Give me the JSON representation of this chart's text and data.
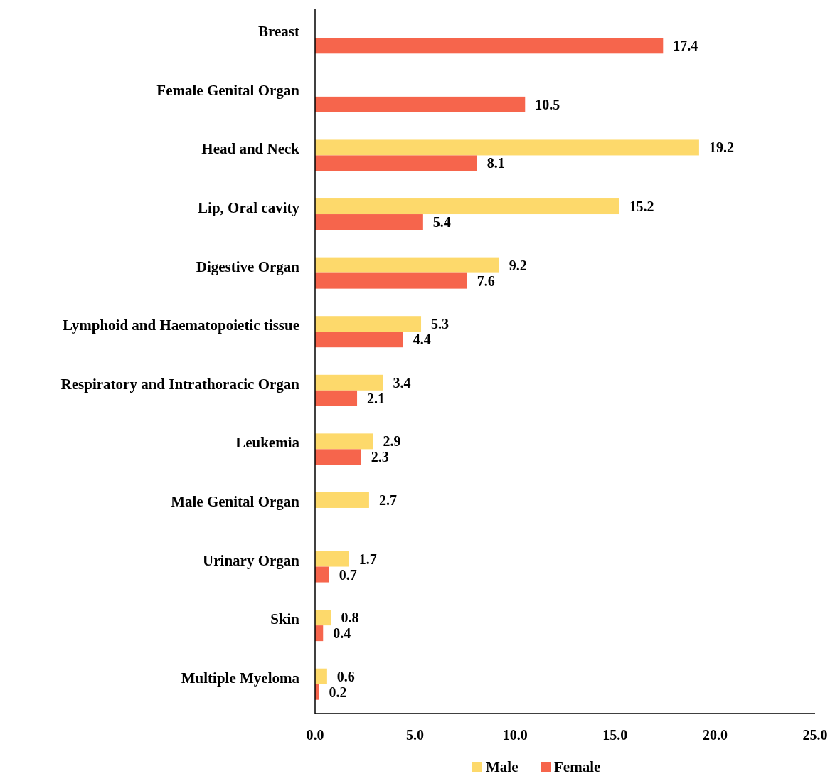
{
  "chart_data": {
    "type": "bar",
    "orientation": "horizontal",
    "categories": [
      "Breast",
      "Female Genital Organ",
      "Head and Neck",
      "Lip, Oral cavity",
      "Digestive Organ",
      "Lymphoid and Haematopoietic tissue",
      "Respiratory and Intrathoracic Organ",
      "Leukemia",
      "Male Genital Organ",
      "Urinary Organ",
      "Skin",
      "Multiple Myeloma"
    ],
    "series": [
      {
        "name": "Male",
        "color": "#fdd96b",
        "values": [
          null,
          null,
          19.2,
          15.2,
          9.2,
          5.3,
          3.4,
          2.9,
          2.7,
          1.7,
          0.8,
          0.6
        ]
      },
      {
        "name": "Female",
        "color": "#f6654c",
        "values": [
          17.4,
          10.5,
          8.1,
          5.4,
          7.6,
          4.4,
          2.1,
          2.3,
          null,
          0.7,
          0.4,
          0.2
        ]
      }
    ],
    "xlim": [
      0,
      25
    ],
    "xticks": [
      {
        "value": 0,
        "label": "0.0"
      },
      {
        "value": 5,
        "label": "5.0"
      },
      {
        "value": 10,
        "label": "10.0"
      },
      {
        "value": 15,
        "label": "15.0"
      },
      {
        "value": 20,
        "label": "20.0"
      },
      {
        "value": 25,
        "label": "25.0"
      }
    ],
    "data_labels": true,
    "legend": "bottom"
  }
}
